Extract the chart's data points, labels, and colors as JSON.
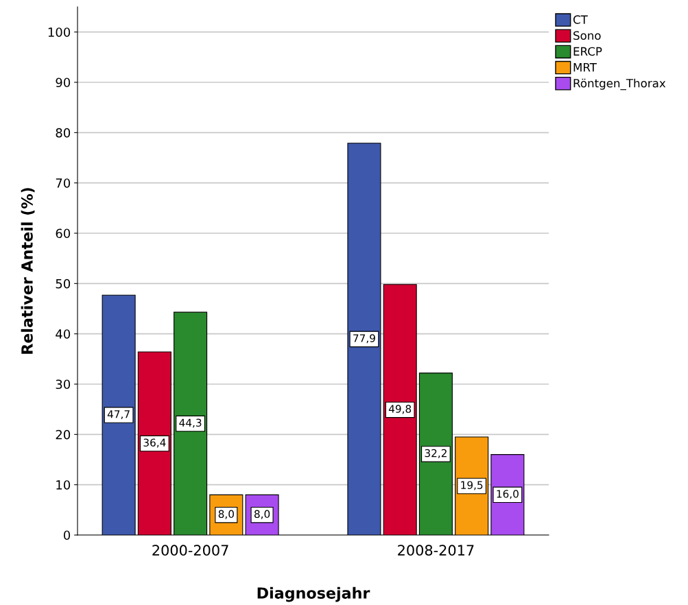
{
  "chart_data": {
    "type": "bar",
    "xlabel": "Diagnosejahr",
    "ylabel": "Relativer Anteil (%)",
    "categories": [
      "2000-2007",
      "2008-2017"
    ],
    "series": [
      {
        "name": "CT",
        "color": "#3e58ac",
        "values": [
          47.7,
          77.9
        ],
        "value_labels": [
          "47,7",
          "77,9"
        ]
      },
      {
        "name": "Sono",
        "color": "#d20030",
        "values": [
          36.4,
          49.8
        ],
        "value_labels": [
          "36,4",
          "49,8"
        ]
      },
      {
        "name": "ERCP",
        "color": "#2a8a2e",
        "values": [
          44.3,
          32.2
        ],
        "value_labels": [
          "44,3",
          "32,2"
        ]
      },
      {
        "name": "MRT",
        "color": "#f89c0e",
        "values": [
          8.0,
          19.5
        ],
        "value_labels": [
          "8,0",
          "19,5"
        ]
      },
      {
        "name": "Röntgen_Thorax",
        "color": "#a84cf0",
        "values": [
          8.0,
          16.0
        ],
        "value_labels": [
          "8,0",
          "16,0"
        ]
      }
    ],
    "ylim": [
      0,
      105
    ],
    "yticks": [
      0,
      10,
      20,
      30,
      40,
      50,
      60,
      70,
      80,
      90,
      100
    ],
    "grid": "y",
    "legend": "top right"
  }
}
